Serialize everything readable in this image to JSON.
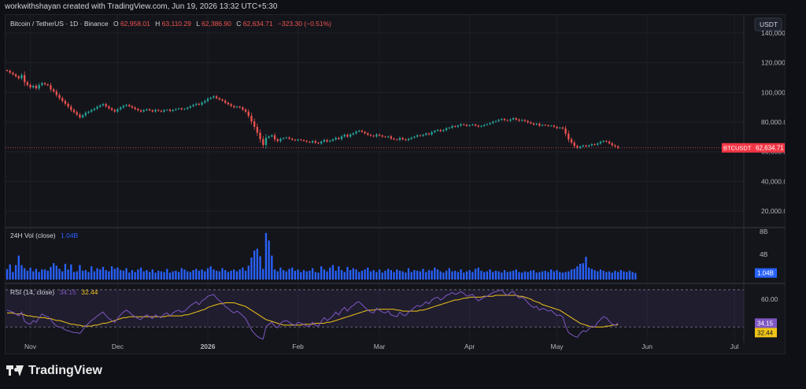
{
  "header": {
    "credit": "workwithshayan created with TradingView.com, Jun 19, 2026 13:32 UTC+5:30"
  },
  "legend": {
    "symbol": "Bitcoin / TetherUS · 1D · Binance",
    "o_label": "O",
    "o_value": "62,958.01",
    "h_label": "H",
    "h_value": "63,110.29",
    "l_label": "L",
    "l_value": "62,386.90",
    "c_label": "C",
    "c_value": "62,634.71",
    "change": "−323.30 (−0.51%)"
  },
  "currency_button": "USDT",
  "price_tag": {
    "symbol": "BTCUSDT",
    "value": "62,634.71"
  },
  "volume_legend": {
    "label": "24H Vol (close)",
    "value": "1.04B"
  },
  "volume_tag": "1.04B",
  "rsi_legend": {
    "label": "RSI (14, close)",
    "value1": "34.15",
    "value2": "32.44"
  },
  "rsi_tags": {
    "rsi": "34.15",
    "ma": "32.44"
  },
  "branding": "TradingView",
  "colors": {
    "up": "#26a69a",
    "down": "#ef5350",
    "volume": "#2962ff",
    "rsi_line": "#7e57c2",
    "rsi_ma": "#f0c419",
    "background": "#14151b",
    "price_tag": "#f23645"
  },
  "chart_data": [
    {
      "type": "candlestick",
      "title": "Bitcoin / TetherUS · 1D · Binance",
      "ylabel": "USDT",
      "ylim": [
        10000,
        150000
      ],
      "y_ticks": [
        "140,000.00",
        "120,000.00",
        "100,000.00",
        "80,000.00",
        "60,000.00",
        "40,000.00",
        "20,000.00"
      ],
      "x_ticks": [
        "Nov",
        "Dec",
        "2026",
        "Feb",
        "Mar",
        "Apr",
        "May",
        "Jun",
        "Jul"
      ],
      "x_tick_days": [
        0,
        30,
        61,
        92,
        120,
        151,
        181,
        212,
        242
      ],
      "start_day": -8,
      "closes": [
        114500,
        113200,
        112100,
        110800,
        109500,
        111600,
        106800,
        105000,
        103300,
        104400,
        102700,
        104900,
        106200,
        105400,
        104800,
        102000,
        100600,
        98200,
        96100,
        94200,
        92300,
        90400,
        88200,
        86700,
        85000,
        83200,
        84500,
        86200,
        87000,
        88100,
        89000,
        90300,
        91200,
        92100,
        90600,
        89300,
        88200,
        87100,
        88600,
        89800,
        90900,
        91600,
        90700,
        89800,
        88800,
        87900,
        87100,
        88000,
        88600,
        87900,
        87100,
        88200,
        87600,
        87000,
        88000,
        88300,
        87400,
        88100,
        88700,
        89200,
        88500,
        88900,
        89700,
        90600,
        91500,
        92300,
        91700,
        93100,
        94200,
        95700,
        96400,
        97300,
        96100,
        95200,
        94400,
        93000,
        92000,
        90800,
        89900,
        90400,
        89800,
        88400,
        87000,
        84200,
        80400,
        76800,
        72800,
        68500,
        64600,
        69400,
        70300,
        71100,
        68400,
        67200,
        68700,
        69200,
        69600,
        68800,
        68100,
        67600,
        68200,
        67800,
        67300,
        66700,
        66300,
        67200,
        66100,
        65600,
        66800,
        67900,
        66900,
        67500,
        68300,
        69400,
        68600,
        70300,
        71400,
        70200,
        71600,
        72400,
        73600,
        74200,
        73400,
        72400,
        71400,
        70800,
        70300,
        71600,
        70900,
        70200,
        69800,
        70300,
        68900,
        68300,
        68000,
        69300,
        68400,
        67800,
        68700,
        69500,
        70200,
        71100,
        70700,
        71400,
        72300,
        71700,
        73200,
        74100,
        74700,
        73900,
        74600,
        75800,
        76200,
        77300,
        76800,
        77600,
        78500,
        78100,
        77400,
        77900,
        78300,
        77600,
        76900,
        77400,
        78100,
        78600,
        79300,
        80200,
        80700,
        81500,
        82100,
        81300,
        80900,
        81800,
        82600,
        81700,
        80900,
        81400,
        80700,
        79800,
        79100,
        78300,
        78900,
        77600,
        78100,
        77800,
        77300,
        77600,
        76800,
        75900,
        76300,
        75600,
        72200,
        68400,
        66200,
        63900,
        62600,
        63500,
        64200,
        63600,
        64300,
        65100,
        64700,
        65600,
        66700,
        67300,
        66800,
        65700,
        64400,
        63600,
        62635
      ],
      "volume_axis": [
        "8B",
        "4B"
      ],
      "volume_ylim": [
        0,
        8000000000
      ],
      "volumes": [
        1.65,
        2.4,
        1.2,
        2.3,
        3.8,
        2.3,
        1.8,
        1.4,
        1.9,
        1.3,
        1.7,
        1.2,
        1.6,
        1.6,
        1.4,
        2.0,
        2.6,
        2.2,
        1.7,
        1.3,
        2.5,
        1.6,
        2.4,
        1.2,
        1.3,
        2.3,
        1.4,
        1.5,
        1.2,
        2.1,
        1.3,
        1.8,
        1.6,
        2.0,
        1.5,
        1.3,
        2.1,
        1.7,
        1.9,
        1.5,
        1.4,
        1.8,
        1.1,
        1.5,
        1.2,
        1.6,
        1.9,
        1.3,
        1.5,
        1.2,
        1.6,
        1.1,
        1.4,
        1.3,
        1.2,
        1.7,
        1.1,
        1.3,
        1.4,
        1.2,
        1.8,
        1.6,
        1.3,
        1.2,
        1.5,
        1.7,
        1.4,
        1.6,
        1.3,
        1.8,
        2.1,
        1.6,
        1.4,
        1.3,
        1.8,
        1.5,
        1.2,
        1.4,
        1.6,
        1.3,
        1.6,
        1.9,
        1.4,
        2.2,
        3.5,
        4.6,
        4.9,
        3.7,
        1.7,
        7.4,
        6.2,
        3.8,
        1.6,
        1.3,
        1.9,
        1.5,
        1.3,
        1.7,
        1.9,
        1.4,
        1.6,
        1.2,
        1.5,
        1.3,
        1.4,
        1.8,
        1.2,
        1.1,
        2.1,
        1.6,
        1.3,
        1.9,
        2.3,
        1.4,
        2.1,
        1.5,
        1.2,
        2.0,
        1.5,
        1.8,
        1.6,
        1.2,
        1.4,
        1.6,
        1.9,
        1.3,
        1.5,
        1.2,
        1.6,
        1.1,
        1.4,
        1.7,
        1.5,
        1.2,
        1.6,
        1.4,
        1.3,
        1.1,
        1.8,
        1.2,
        1.5,
        1.4,
        1.3,
        1.7,
        1.2,
        1.5,
        1.4,
        1.9,
        1.6,
        1.3,
        1.1,
        1.4,
        1.8,
        1.3,
        1.4,
        1.2,
        1.6,
        1.1,
        1.3,
        1.5,
        1.2,
        1.7,
        1.9,
        1.4,
        1.2,
        1.3,
        1.6,
        1.2,
        1.4,
        1.3,
        1.1,
        1.5,
        1.2,
        1.3,
        1.4,
        1.6,
        1.2,
        1.1,
        1.3,
        1.2,
        1.4,
        1.5,
        1.1,
        1.2,
        1.3,
        1.4,
        1.2,
        1.6,
        1.3,
        1.5,
        1.2,
        1.1,
        1.2,
        1.3,
        1.6,
        1.7,
        2.1,
        2.5,
        2.6,
        3.6,
        1.9,
        1.7,
        1.5,
        1.3,
        1.6,
        1.4,
        1.2,
        1.3,
        1.1,
        1.4,
        1.2,
        1.5,
        1.3,
        1.2,
        1.4,
        1.2,
        1.04
      ],
      "volume_unit": "billions",
      "rsi_axis": [
        "60.00"
      ],
      "rsi_ylim": [
        15,
        75
      ],
      "rsi_bands": [
        30,
        70
      ],
      "rsi": [
        48,
        47,
        46,
        44,
        42,
        46,
        36,
        34,
        33,
        37,
        35,
        40,
        44,
        42,
        41,
        38,
        34,
        31,
        30,
        29,
        27,
        26,
        25,
        24,
        24,
        23,
        27,
        31,
        34,
        37,
        39,
        42,
        44,
        46,
        42,
        39,
        37,
        35,
        39,
        43,
        46,
        48,
        46,
        43,
        41,
        39,
        38,
        41,
        43,
        41,
        39,
        43,
        41,
        40,
        44,
        45,
        42,
        45,
        47,
        48,
        46,
        47,
        50,
        53,
        55,
        57,
        54,
        58,
        60,
        63,
        64,
        65,
        61,
        58,
        56,
        52,
        50,
        47,
        45,
        47,
        45,
        42,
        39,
        33,
        27,
        23,
        20,
        18,
        17,
        30,
        33,
        35,
        31,
        29,
        34,
        36,
        37,
        35,
        33,
        32,
        35,
        34,
        33,
        31,
        31,
        35,
        32,
        31,
        36,
        40,
        37,
        39,
        42,
        46,
        43,
        48,
        51,
        47,
        51,
        53,
        56,
        57,
        54,
        51,
        48,
        46,
        45,
        50,
        48,
        46,
        45,
        47,
        43,
        42,
        41,
        46,
        43,
        42,
        46,
        48,
        51,
        53,
        52,
        54,
        57,
        55,
        59,
        61,
        62,
        59,
        61,
        64,
        65,
        67,
        65,
        66,
        68,
        66,
        63,
        64,
        65,
        61,
        58,
        60,
        62,
        63,
        65,
        67,
        68,
        69,
        70,
        66,
        64,
        67,
        68,
        64,
        61,
        62,
        60,
        56,
        53,
        51,
        52,
        48,
        50,
        49,
        47,
        48,
        45,
        42,
        43,
        41,
        31,
        24,
        22,
        20,
        19,
        23,
        26,
        25,
        28,
        31,
        30,
        35,
        38,
        41,
        40,
        36,
        33,
        32,
        34.15
      ],
      "rsi_ma": [
        45,
        45,
        45,
        44,
        44,
        44,
        43,
        42,
        42,
        41,
        41,
        40,
        40,
        40,
        39,
        39,
        38,
        37,
        37,
        36,
        35,
        34,
        33,
        33,
        32,
        32,
        31,
        31,
        31,
        31,
        32,
        32,
        33,
        34,
        34,
        35,
        36,
        37,
        38,
        39,
        40,
        40,
        41,
        41,
        41,
        41,
        41,
        41,
        41,
        41,
        41,
        41,
        41,
        41,
        41,
        42,
        42,
        42,
        42,
        42,
        42,
        43,
        43,
        44,
        45,
        46,
        47,
        48,
        49,
        51,
        52,
        53,
        54,
        55,
        55,
        56,
        56,
        56,
        56,
        55,
        54,
        53,
        52,
        50,
        48,
        46,
        44,
        42,
        40,
        38,
        37,
        36,
        35,
        34,
        33,
        32,
        32,
        32,
        32,
        32,
        32,
        32,
        33,
        33,
        33,
        33,
        34,
        34,
        34,
        34,
        35,
        35,
        36,
        37,
        38,
        39,
        40,
        41,
        42,
        43,
        44,
        45,
        46,
        47,
        48,
        48,
        48,
        49,
        49,
        49,
        49,
        49,
        49,
        49,
        48,
        48,
        47,
        47,
        47,
        47,
        47,
        47,
        48,
        48,
        49,
        50,
        51,
        52,
        53,
        54,
        55,
        56,
        57,
        58,
        59,
        59,
        60,
        61,
        61,
        62,
        62,
        62,
        62,
        62,
        63,
        63,
        63,
        63,
        64,
        64,
        64,
        64,
        64,
        64,
        64,
        64,
        63,
        63,
        62,
        61,
        60,
        58,
        57,
        56,
        54,
        53,
        52,
        51,
        50,
        49,
        48,
        46,
        44,
        42,
        40,
        38,
        36,
        34,
        33,
        32,
        31,
        30,
        30,
        30,
        30,
        30,
        31,
        31,
        32,
        32,
        32.44
      ]
    }
  ]
}
